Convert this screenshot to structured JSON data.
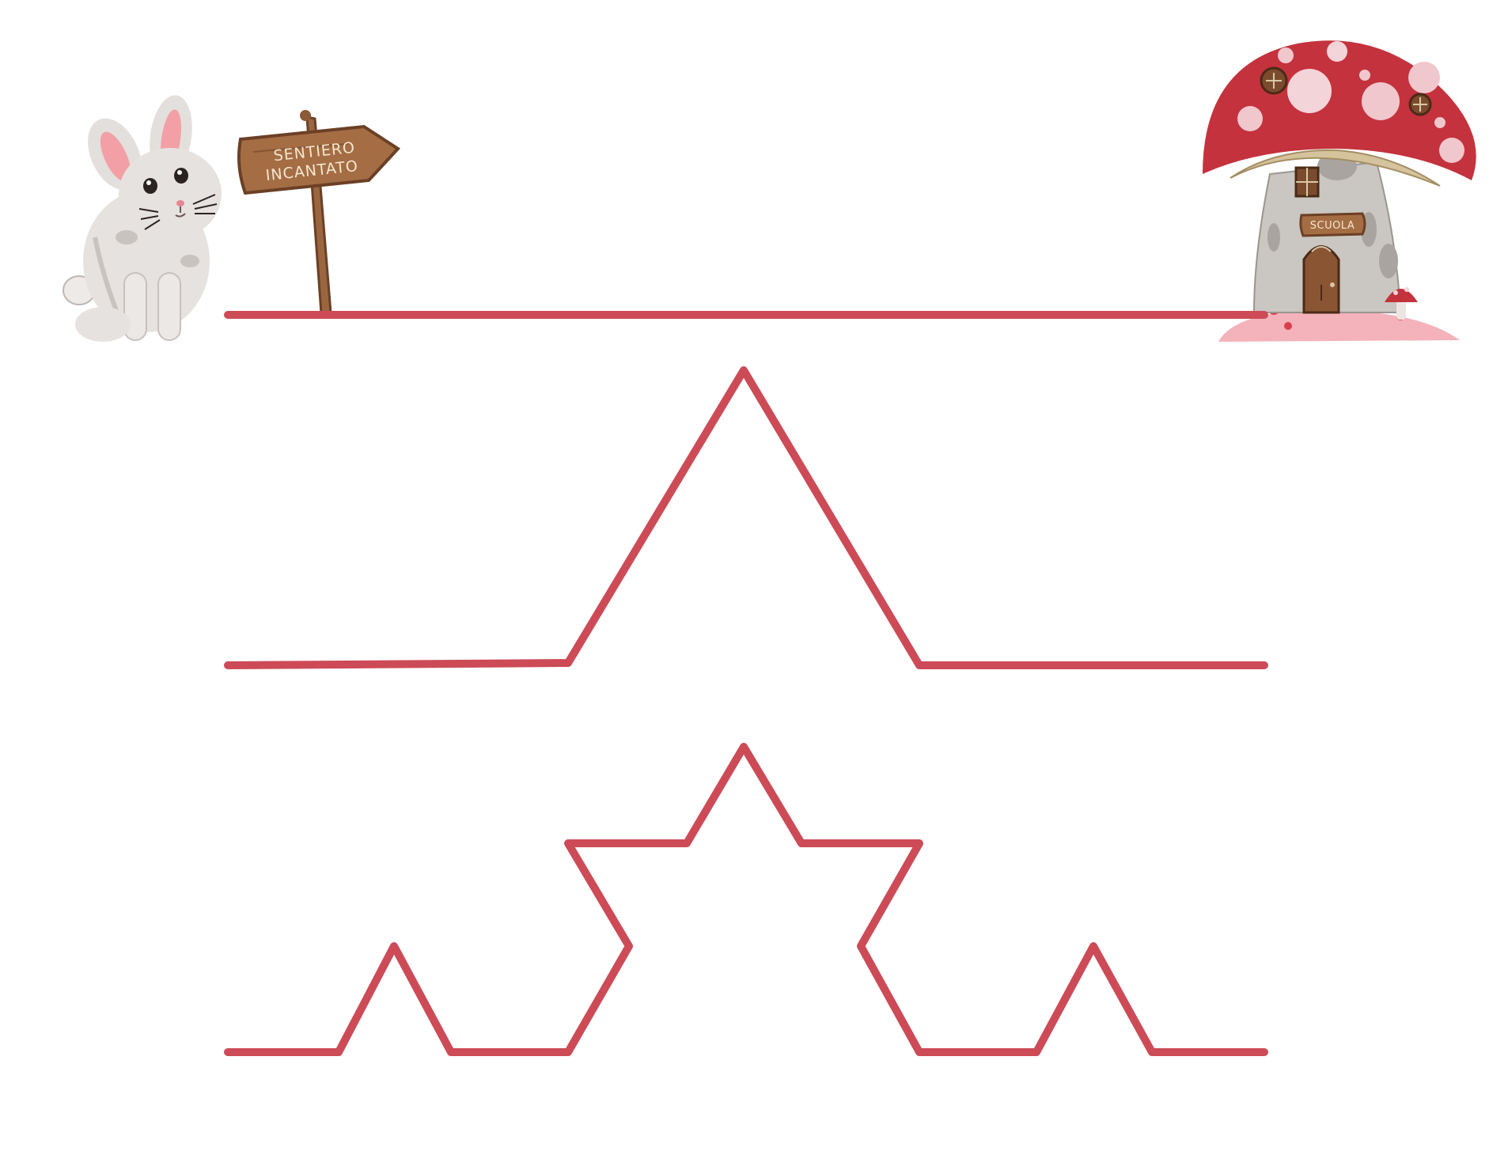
{
  "signpost": {
    "line1": "SENTIERO",
    "line2": "INCANTATO"
  },
  "house": {
    "sign": "SCUOLA"
  },
  "colors": {
    "path": "#cc4b57",
    "wood": "#9a6640",
    "wood_dark": "#6b4025",
    "cap": "#c4323d",
    "stem": "#c9c5c0",
    "ground": "#f4b2ba",
    "bunny": "#e4e0de",
    "ear_inner": "#f2a0a6"
  },
  "icons": [
    "bunny-icon",
    "signpost-icon",
    "mushroom-house-icon"
  ],
  "tracing_paths": [
    {
      "name": "straight-path",
      "level": 0
    },
    {
      "name": "one-peak-path",
      "level": 1
    },
    {
      "name": "koch-path",
      "level": 2
    }
  ]
}
